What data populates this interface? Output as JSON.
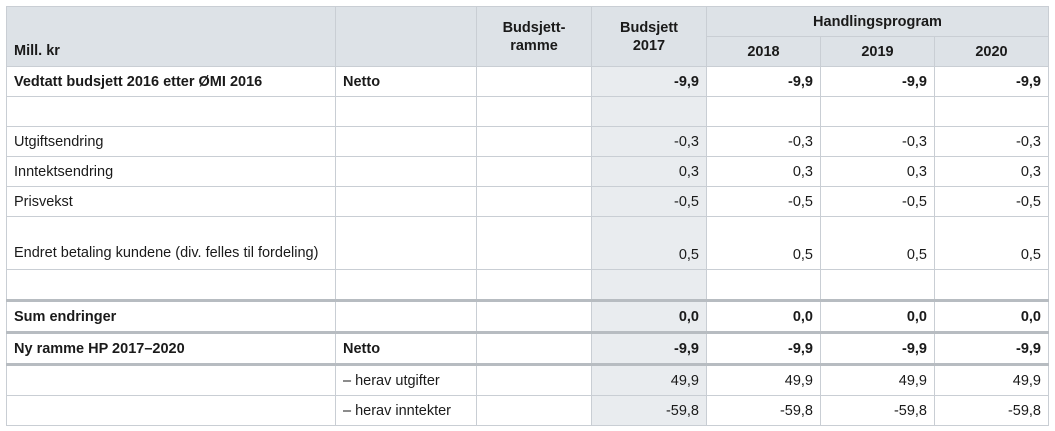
{
  "header": {
    "unit": "Mill. kr",
    "budsjettramme": "Budsjett-\nramme",
    "budsjett_2017": "Budsjett\n2017",
    "handlingsprogram": "Handlingsprogram",
    "years": [
      "2018",
      "2019",
      "2020"
    ]
  },
  "rows": [
    {
      "label": "Vedtatt budsjett 2016 etter ØMI 2016",
      "sub": "Netto",
      "values": [
        "-9,9",
        "-9,9",
        "-9,9",
        "-9,9"
      ]
    },
    {
      "label": "",
      "sub": "",
      "values": [
        "",
        "",
        "",
        ""
      ]
    },
    {
      "label": "Utgiftsendring",
      "sub": "",
      "values": [
        "-0,3",
        "-0,3",
        "-0,3",
        "-0,3"
      ]
    },
    {
      "label": "Inntektsendring",
      "sub": "",
      "values": [
        "0,3",
        "0,3",
        "0,3",
        "0,3"
      ]
    },
    {
      "label": "Prisvekst",
      "sub": "",
      "values": [
        "-0,5",
        "-0,5",
        "-0,5",
        "-0,5"
      ]
    },
    {
      "label": "Endret betaling kundene (div. felles til fordeling)",
      "sub": "",
      "values": [
        "0,5",
        "0,5",
        "0,5",
        "0,5"
      ]
    },
    {
      "label": "",
      "sub": "",
      "values": [
        "",
        "",
        "",
        ""
      ]
    },
    {
      "label": "Sum endringer",
      "sub": "",
      "values": [
        "0,0",
        "0,0",
        "0,0",
        "0,0"
      ]
    },
    {
      "label": "Ny ramme HP 2017–2020",
      "sub": "Netto",
      "values": [
        "-9,9",
        "-9,9",
        "-9,9",
        "-9,9"
      ]
    },
    {
      "label": "",
      "sub": "– herav utgifter",
      "values": [
        "49,9",
        "49,9",
        "49,9",
        "49,9"
      ]
    },
    {
      "label": "",
      "sub": "– herav inntekter",
      "values": [
        "-59,8",
        "-59,8",
        "-59,8",
        "-59,8"
      ]
    }
  ]
}
